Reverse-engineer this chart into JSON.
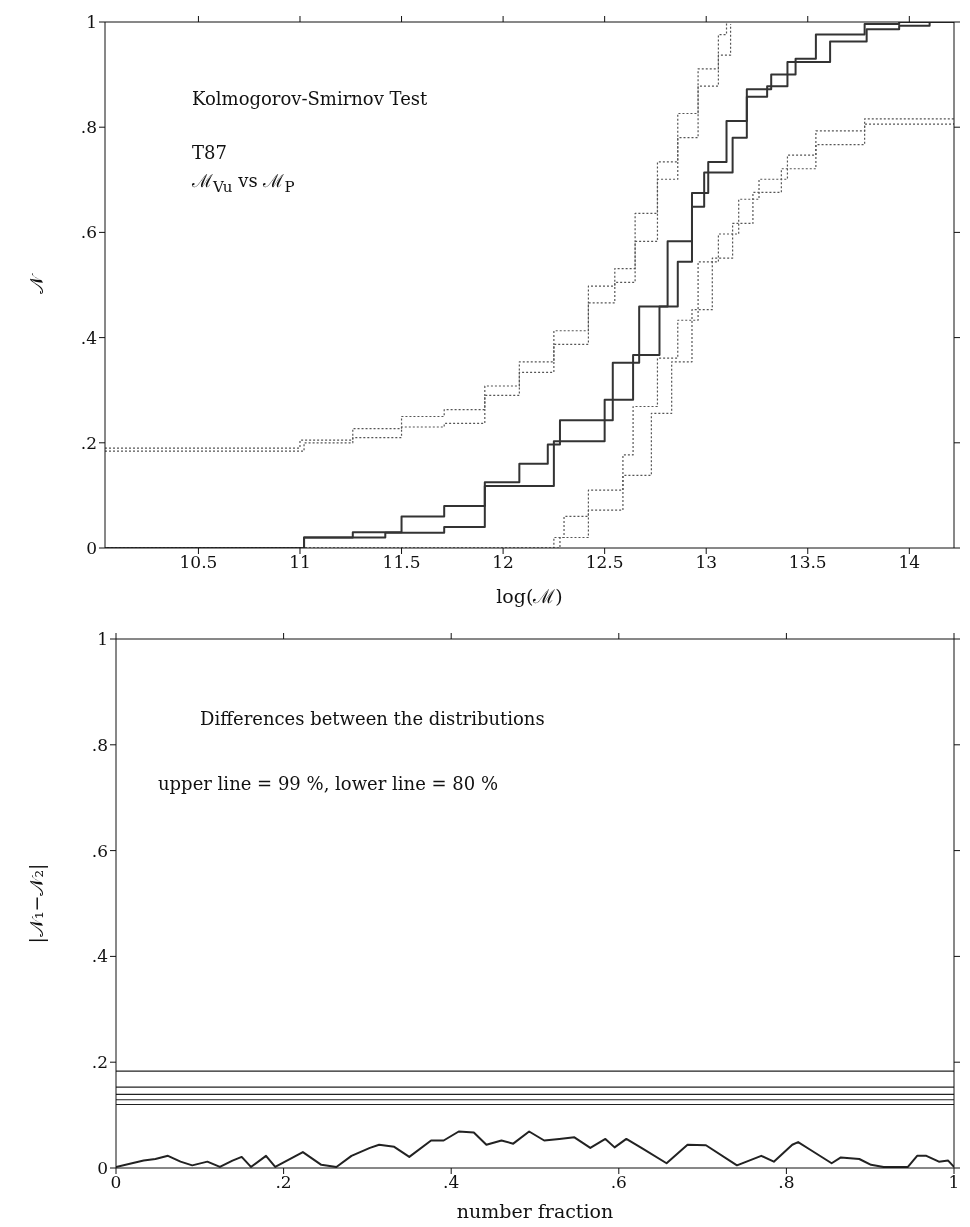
{
  "chart_data": [
    {
      "type": "step",
      "xlabel": "log(ℳ)",
      "ylabel": "𝒩",
      "xlim": [
        10.04,
        14.22
      ],
      "ylim": [
        0,
        1
      ],
      "xticks": [
        10.5,
        11,
        11.5,
        12,
        12.5,
        13,
        13.5,
        14
      ],
      "yticks": [
        {
          "value": 0,
          "label": "0"
        },
        {
          "value": 0.2,
          "label": ".2"
        },
        {
          "value": 0.4,
          "label": ".4"
        },
        {
          "value": 0.6,
          "label": ".6"
        },
        {
          "value": 0.8,
          "label": ".8"
        },
        {
          "value": 1,
          "label": "1"
        }
      ],
      "annotations": [
        "Kolmogorov-Smirnov Test",
        "T87",
        "ℳ$_{Vu}$ vs ℳ$_{P}$"
      ],
      "series": [
        {
          "color": "#333333",
          "line_style": "solid",
          "x": [
            10.04,
            11.02,
            11.26,
            11.5,
            11.71,
            11.91,
            12.08,
            12.22,
            12.28,
            12.54,
            12.67,
            12.81,
            12.93,
            13.01,
            13.1,
            13.2,
            13.32,
            13.44,
            13.54,
            13.78,
            13.95,
            14.22
          ],
          "values": [
            0,
            0.02,
            0.03,
            0.06,
            0.08,
            0.125,
            0.16,
            0.197,
            0.243,
            0.352,
            0.459,
            0.583,
            0.675,
            0.734,
            0.812,
            0.872,
            0.9,
            0.93,
            0.976,
            0.996,
            1,
            1
          ]
        },
        {
          "color": "#333333",
          "line_style": "solid",
          "x": [
            10.04,
            11.02,
            11.42,
            11.71,
            11.91,
            12.25,
            12.5,
            12.64,
            12.77,
            12.86,
            12.93,
            12.99,
            13.13,
            13.2,
            13.3,
            13.4,
            13.61,
            13.79,
            13.95,
            14.1,
            14.22
          ],
          "values": [
            0,
            0.02,
            0.029,
            0.04,
            0.118,
            0.203,
            0.282,
            0.367,
            0.459,
            0.544,
            0.649,
            0.714,
            0.78,
            0.858,
            0.878,
            0.924,
            0.963,
            0.986,
            0.993,
            1,
            1
          ]
        },
        {
          "color": "#555555",
          "line_style": "dotted",
          "x": [
            10.04,
            11,
            11.26,
            11.5,
            11.71,
            11.91,
            12.08,
            12.25,
            12.42,
            12.55,
            12.65,
            12.76,
            12.86,
            12.96,
            13.06,
            13.1
          ],
          "values": [
            0.19,
            0.205,
            0.227,
            0.25,
            0.263,
            0.308,
            0.354,
            0.413,
            0.498,
            0.531,
            0.636,
            0.734,
            0.826,
            0.911,
            0.976,
            1
          ]
        },
        {
          "color": "#555555",
          "line_style": "dotted",
          "x": [
            10.04,
            11.02,
            11.26,
            11.5,
            11.71,
            11.91,
            12.08,
            12.25,
            12.42,
            12.55,
            12.65,
            12.76,
            12.86,
            12.96,
            13.06,
            13.12
          ],
          "values": [
            0.184,
            0.2,
            0.21,
            0.23,
            0.237,
            0.29,
            0.334,
            0.387,
            0.466,
            0.505,
            0.583,
            0.701,
            0.78,
            0.878,
            0.937,
            0.996
          ]
        },
        {
          "color": "#555555",
          "line_style": "dotted",
          "x": [
            10.04,
            12.25,
            12.3,
            12.42,
            12.59,
            12.64,
            12.76,
            12.86,
            12.96,
            13.06,
            13.16,
            13.26,
            13.4,
            13.54,
            13.78,
            14.22
          ],
          "values": [
            0,
            0.02,
            0.06,
            0.11,
            0.177,
            0.269,
            0.361,
            0.433,
            0.544,
            0.597,
            0.663,
            0.701,
            0.747,
            0.793,
            0.816,
            0.816
          ]
        },
        {
          "color": "#555555",
          "line_style": "dotted",
          "x": [
            10.04,
            12.28,
            12.42,
            12.59,
            12.73,
            12.83,
            12.93,
            13.03,
            13.13,
            13.23,
            13.37,
            13.54,
            13.78,
            14.22
          ],
          "values": [
            0,
            0.02,
            0.072,
            0.138,
            0.256,
            0.354,
            0.453,
            0.551,
            0.617,
            0.676,
            0.721,
            0.767,
            0.806,
            0.81
          ]
        }
      ]
    },
    {
      "type": "line",
      "xlabel": "number fraction",
      "ylabel": "|𝒩₁−𝒩₂|",
      "xlim": [
        0,
        1
      ],
      "ylim": [
        0,
        1
      ],
      "xticks": [
        {
          "value": 0,
          "label": "0"
        },
        {
          "value": 0.2,
          "label": ".2"
        },
        {
          "value": 0.4,
          "label": ".4"
        },
        {
          "value": 0.6,
          "label": ".6"
        },
        {
          "value": 0.8,
          "label": ".8"
        },
        {
          "value": 1,
          "label": "1"
        }
      ],
      "yticks": [
        {
          "value": 0,
          "label": "0"
        },
        {
          "value": 0.2,
          "label": ".2"
        },
        {
          "value": 0.4,
          "label": ".4"
        },
        {
          "value": 0.6,
          "label": ".6"
        },
        {
          "value": 0.8,
          "label": ".8"
        },
        {
          "value": 1,
          "label": "1"
        }
      ],
      "annotations": [
        "Differences between the distributions",
        "upper line = 99 %, lower line = 80 %"
      ],
      "ref_lines": [
        {
          "axis": "y",
          "value": 0.183,
          "color": "#222222"
        },
        {
          "axis": "y",
          "value": 0.153,
          "color": "#222222"
        },
        {
          "axis": "y",
          "value": 0.139,
          "color": "#222222"
        },
        {
          "axis": "y",
          "value": 0.129,
          "color": "#222222"
        },
        {
          "axis": "y",
          "value": 0.12,
          "color": "#222222"
        }
      ],
      "series": [
        {
          "color": "#222222",
          "line_style": "solid",
          "x": [
            0,
            0.033,
            0.047,
            0.062,
            0.077,
            0.091,
            0.109,
            0.124,
            0.139,
            0.15,
            0.161,
            0.179,
            0.19,
            0.223,
            0.245,
            0.263,
            0.281,
            0.303,
            0.314,
            0.332,
            0.35,
            0.376,
            0.391,
            0.409,
            0.427,
            0.442,
            0.46,
            0.474,
            0.493,
            0.511,
            0.529,
            0.547,
            0.566,
            0.584,
            0.595,
            0.609,
            0.628,
            0.657,
            0.682,
            0.704,
            0.741,
            0.77,
            0.785,
            0.807,
            0.814,
            0.828,
            0.854,
            0.865,
            0.887,
            0.901,
            0.916,
            0.945,
            0.956,
            0.967,
            0.982,
            0.993,
            1
          ],
          "values": [
            0.002,
            0.014,
            0.017,
            0.023,
            0.012,
            0.005,
            0.012,
            0.002,
            0.014,
            0.021,
            0.002,
            0.023,
            0.002,
            0.03,
            0.006,
            0.002,
            0.023,
            0.038,
            0.044,
            0.04,
            0.021,
            0.052,
            0.052,
            0.069,
            0.067,
            0.044,
            0.052,
            0.046,
            0.069,
            0.052,
            0.055,
            0.058,
            0.038,
            0.055,
            0.039,
            0.055,
            0.037,
            0.009,
            0.044,
            0.043,
            0.005,
            0.023,
            0.012,
            0.044,
            0.049,
            0.035,
            0.009,
            0.02,
            0.017,
            0.006,
            0.002,
            0.002,
            0.023,
            0.023,
            0.012,
            0.014,
            0.002
          ]
        }
      ]
    }
  ]
}
